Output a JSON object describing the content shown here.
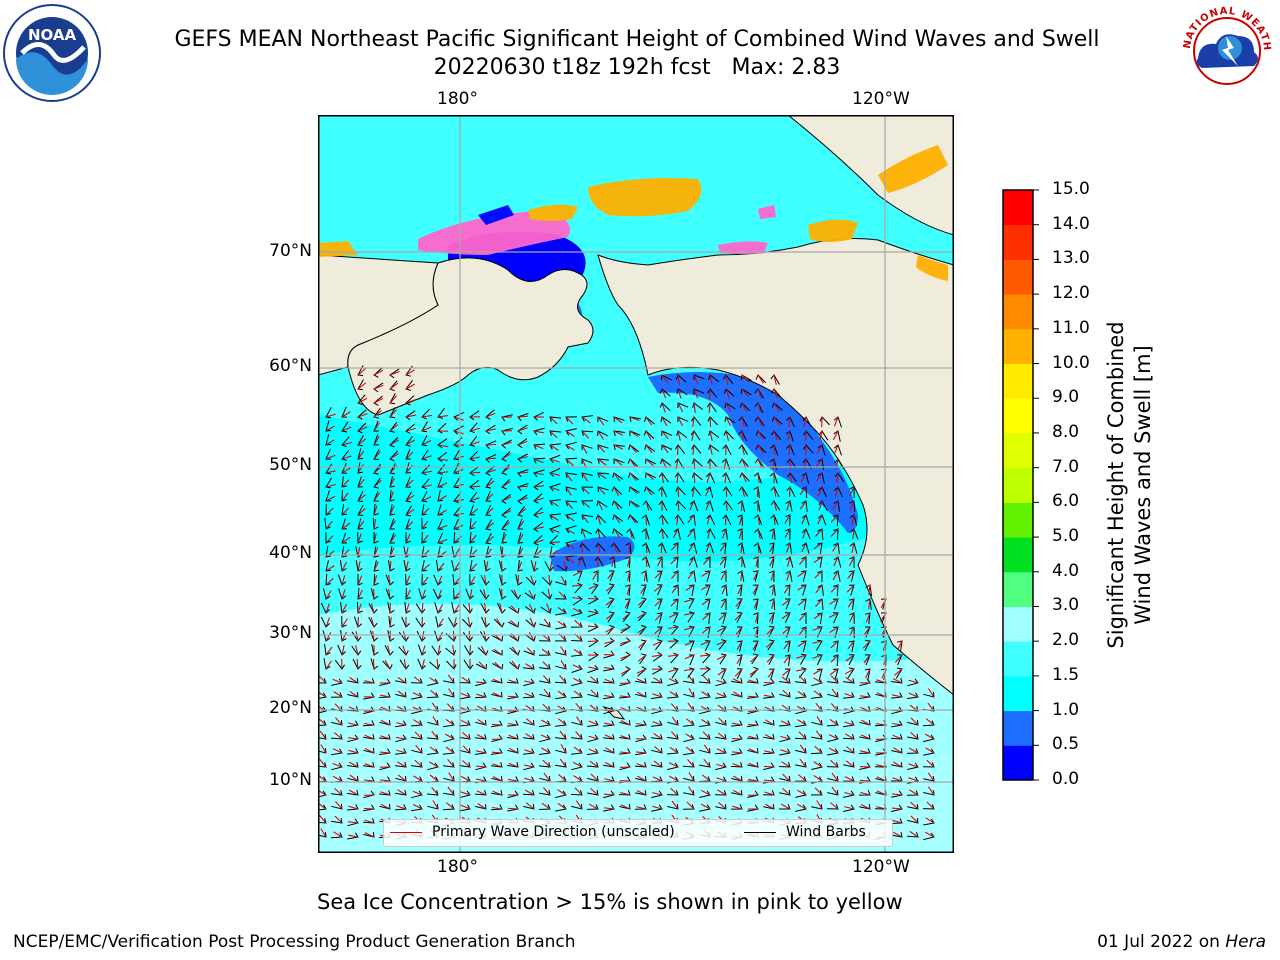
{
  "header": {
    "title_line1": "GEFS MEAN Northeast Pacific Significant Height of Combined Wind Waves and Swell",
    "title_line2": "20220630 t18z 192h fcst   Max: 2.83"
  },
  "logos": {
    "noaa": {
      "text": "NOAA",
      "icon": "noaa-logo-icon"
    },
    "nws": {
      "text": "NATIONAL WEATHER SERVICE",
      "icon": "nws-logo-icon"
    }
  },
  "map": {
    "projection": "mercator",
    "lon_range_deg_east": [
      160,
      230
    ],
    "lat_range_deg": [
      2,
      80
    ],
    "top_lon_labels": [
      "180°",
      "120°W"
    ],
    "bottom_lon_labels": [
      "180°",
      "120°W"
    ],
    "lat_labels": [
      "70°N",
      "60°N",
      "50°N",
      "40°N",
      "30°N",
      "20°N",
      "10°N"
    ],
    "gridlines": true,
    "land_color": "#efecdc",
    "max_value_m": 2.83
  },
  "legend": {
    "items": [
      {
        "label": "Primary Wave Direction (unscaled)",
        "color": "#e00000"
      },
      {
        "label": "Wind Barbs",
        "color": "#000000"
      }
    ]
  },
  "colorbar": {
    "label_line1": "Significant Height of Combined",
    "label_line2": "Wind Waves and Swell [m]",
    "ticks": [
      "0.0",
      "0.5",
      "1.0",
      "1.5",
      "2.0",
      "3.0",
      "4.0",
      "5.0",
      "6.0",
      "7.0",
      "8.0",
      "9.0",
      "10.0",
      "11.0",
      "12.0",
      "13.0",
      "14.0",
      "15.0"
    ],
    "colors": [
      "#0000ff",
      "#1e6eff",
      "#00ffff",
      "#40ffff",
      "#a0ffff",
      "#50ff80",
      "#00e020",
      "#60f000",
      "#c0ff00",
      "#e0ff00",
      "#ffff00",
      "#ffea00",
      "#ffb000",
      "#ff8c00",
      "#ff5a00",
      "#ff3000",
      "#ff0000"
    ]
  },
  "footer": {
    "note": "Sea Ice Concentration > 15% is shown in pink to yellow",
    "left": "NCEP/EMC/Verification Post Processing Product Generation Branch",
    "right_date": "01 Jul 2022 on",
    "right_host": "Hera"
  }
}
